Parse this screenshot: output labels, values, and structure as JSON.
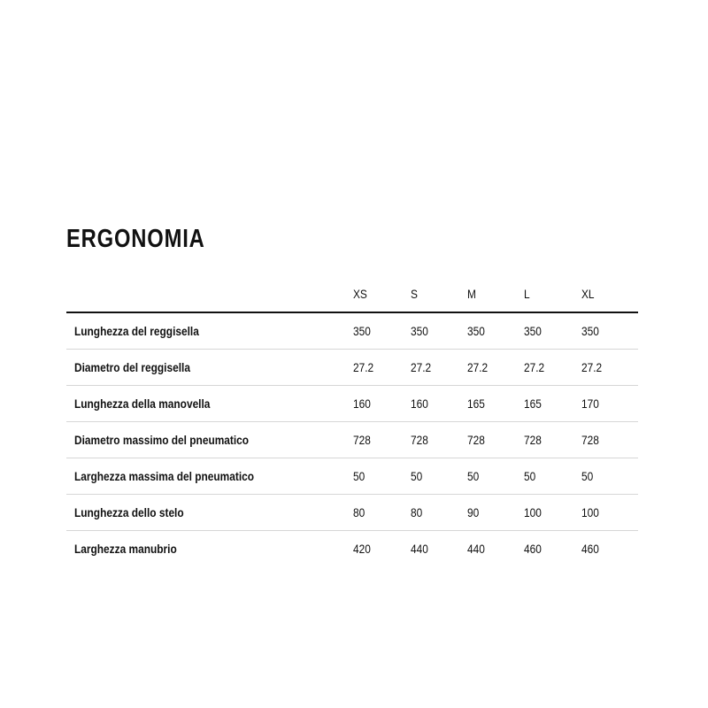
{
  "title": "ERGONOMIA",
  "table": {
    "columns": [
      "XS",
      "S",
      "M",
      "L",
      "XL"
    ],
    "rows": [
      {
        "label": "Lunghezza del reggisella",
        "values": [
          "350",
          "350",
          "350",
          "350",
          "350"
        ]
      },
      {
        "label": "Diametro del reggisella",
        "values": [
          "27.2",
          "27.2",
          "27.2",
          "27.2",
          "27.2"
        ]
      },
      {
        "label": "Lunghezza della manovella",
        "values": [
          "160",
          "160",
          "165",
          "165",
          "170"
        ]
      },
      {
        "label": "Diametro massimo del pneumatico",
        "values": [
          "728",
          "728",
          "728",
          "728",
          "728"
        ]
      },
      {
        "label": "Larghezza massima del pneumatico",
        "values": [
          "50",
          "50",
          "50",
          "50",
          "50"
        ]
      },
      {
        "label": "Lunghezza dello stelo",
        "values": [
          "80",
          "80",
          "90",
          "100",
          "100"
        ]
      },
      {
        "label": "Larghezza manubrio",
        "values": [
          "420",
          "440",
          "440",
          "460",
          "460"
        ]
      }
    ]
  }
}
